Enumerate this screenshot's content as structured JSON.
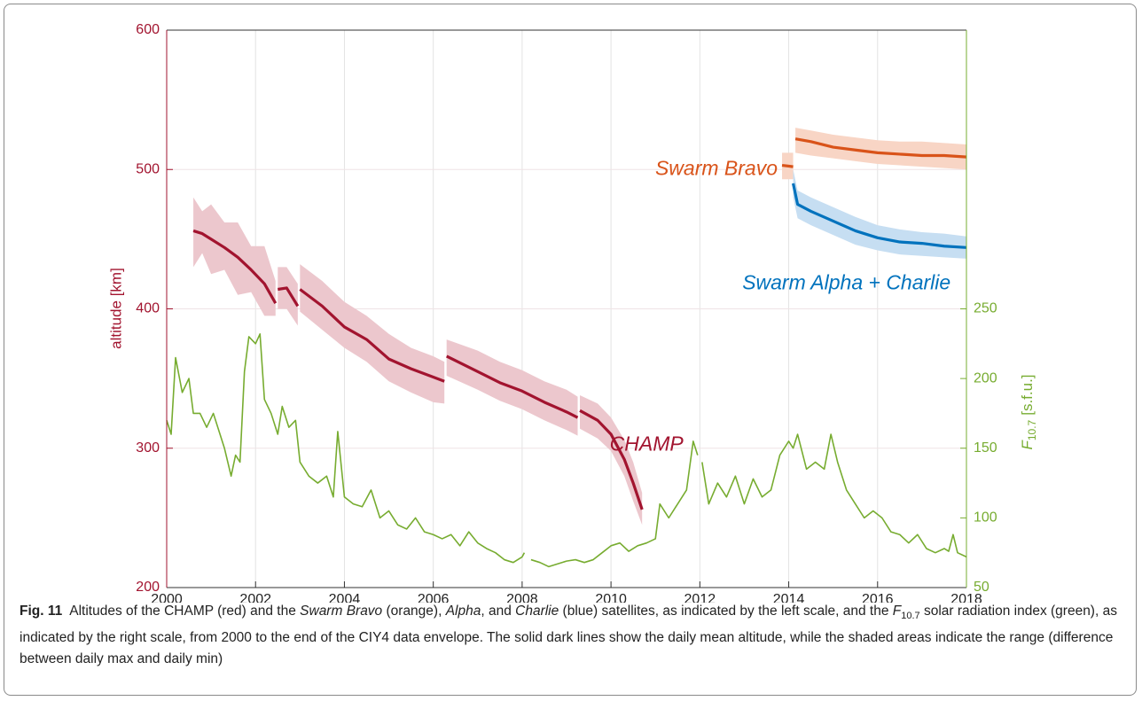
{
  "chart_data": {
    "type": "line",
    "ylabel": "altitude [km]",
    "y2label": {
      "symbol": "F",
      "subscript": "10.7",
      "unit": "[s.f.u.]"
    },
    "xlim": [
      2000,
      2018
    ],
    "xticks": [
      2000,
      2002,
      2004,
      2006,
      2008,
      2010,
      2012,
      2014,
      2016,
      2018
    ],
    "ylim": [
      200,
      600
    ],
    "yticks": [
      200,
      300,
      400,
      500,
      600
    ],
    "y2lim": [
      50,
      450
    ],
    "y2ticks": [
      50,
      100,
      150,
      200,
      250
    ],
    "grid": true,
    "series": [
      {
        "name": "CHAMP",
        "color": "#a2142f",
        "band_color": "#ecc7cd",
        "x": [
          2000.6,
          2000.8,
          2001.0,
          2001.3,
          2001.6,
          2001.9,
          2002.2,
          2002.45,
          2002.47,
          2002.5,
          2002.7,
          2002.95,
          2002.97,
          2003.0,
          2003.5,
          2004.0,
          2004.5,
          2005.0,
          2005.5,
          2006.0,
          2006.25,
          2006.27,
          2006.3,
          2007.0,
          2007.5,
          2008.0,
          2008.5,
          2009.0,
          2009.25,
          2009.27,
          2009.3,
          2009.7,
          2010.0,
          2010.3,
          2010.5,
          2010.7
        ],
        "values": [
          456,
          454,
          450,
          444,
          437,
          428,
          418,
          404,
          null,
          414,
          415,
          402,
          null,
          414,
          402,
          387,
          378,
          364,
          357,
          351,
          348,
          null,
          366,
          355,
          347,
          341,
          333,
          326,
          322,
          null,
          327,
          320,
          310,
          292,
          275,
          256
        ],
        "high": [
          480,
          470,
          475,
          462,
          462,
          445,
          445,
          420,
          null,
          430,
          430,
          418,
          null,
          432,
          420,
          405,
          395,
          382,
          372,
          366,
          362,
          null,
          378,
          370,
          362,
          356,
          348,
          342,
          337,
          null,
          338,
          332,
          322,
          306,
          290,
          268
        ],
        "low": [
          430,
          440,
          425,
          428,
          410,
          412,
          395,
          395,
          null,
          400,
          400,
          388,
          null,
          398,
          385,
          372,
          362,
          348,
          340,
          333,
          332,
          null,
          352,
          342,
          334,
          328,
          320,
          313,
          309,
          null,
          314,
          307,
          298,
          280,
          262,
          245
        ]
      },
      {
        "name": "Swarm Bravo",
        "color": "#d95319",
        "band_color": "#f8d5c5",
        "x": [
          2013.85,
          2014.1,
          2014.12,
          2014.15,
          2014.5,
          2015.0,
          2015.5,
          2016.0,
          2016.5,
          2017.0,
          2017.5,
          2018.0
        ],
        "values": [
          503,
          502,
          null,
          522,
          520,
          516,
          514,
          512,
          511,
          510,
          510,
          509
        ],
        "high": [
          512,
          512,
          null,
          530,
          528,
          525,
          523,
          521,
          520,
          520,
          519,
          518
        ],
        "low": [
          493,
          493,
          null,
          512,
          510,
          508,
          506,
          504,
          503,
          502,
          501,
          500
        ]
      },
      {
        "name": "Swarm Alpha + Charlie",
        "color": "#0072bd",
        "band_color": "#c6def2",
        "x": [
          2014.1,
          2014.2,
          2014.5,
          2015.0,
          2015.5,
          2016.0,
          2016.5,
          2017.0,
          2017.5,
          2018.0
        ],
        "values": [
          490,
          475,
          470,
          463,
          456,
          451,
          448,
          447,
          445,
          444
        ],
        "high": [
          500,
          485,
          480,
          473,
          466,
          460,
          457,
          455,
          454,
          452
        ],
        "low": [
          480,
          465,
          460,
          453,
          446,
          442,
          439,
          438,
          437,
          436
        ]
      },
      {
        "axis": "y2",
        "color": "#77ac30",
        "x": [
          2000.0,
          2000.1,
          2000.2,
          2000.35,
          2000.5,
          2000.6,
          2000.75,
          2000.9,
          2001.05,
          2001.2,
          2001.3,
          2001.45,
          2001.55,
          2001.65,
          2001.75,
          2001.85,
          2002.0,
          2002.1,
          2002.2,
          2002.35,
          2002.5,
          2002.6,
          2002.75,
          2002.9,
          2003.0,
          2003.2,
          2003.4,
          2003.6,
          2003.75,
          2003.85,
          2004.0,
          2004.2,
          2004.4,
          2004.6,
          2004.8,
          2005.0,
          2005.2,
          2005.4,
          2005.6,
          2005.8,
          2006.0,
          2006.2,
          2006.4,
          2006.6,
          2006.8,
          2007.0,
          2007.2,
          2007.4,
          2007.6,
          2007.8,
          2008.0,
          2008.05,
          2008.1,
          2008.2,
          2008.4,
          2008.6,
          2008.8,
          2009.0,
          2009.2,
          2009.4,
          2009.6,
          2009.8,
          2010.0,
          2010.2,
          2010.4,
          2010.6,
          2010.8,
          2011.0,
          2011.1,
          2011.3,
          2011.5,
          2011.7,
          2011.85,
          2011.95,
          2012.0,
          2012.05,
          2012.2,
          2012.4,
          2012.6,
          2012.8,
          2013.0,
          2013.2,
          2013.4,
          2013.6,
          2013.8,
          2014.0,
          2014.1,
          2014.2,
          2014.4,
          2014.6,
          2014.8,
          2014.95,
          2015.1,
          2015.3,
          2015.5,
          2015.7,
          2015.9,
          2016.1,
          2016.3,
          2016.5,
          2016.7,
          2016.9,
          2017.1,
          2017.3,
          2017.5,
          2017.6,
          2017.7,
          2017.8,
          2018.0
        ],
        "values": [
          170,
          160,
          215,
          190,
          200,
          175,
          175,
          165,
          175,
          160,
          150,
          130,
          145,
          140,
          205,
          230,
          225,
          232,
          185,
          175,
          160,
          180,
          165,
          170,
          140,
          130,
          125,
          130,
          115,
          162,
          115,
          110,
          108,
          120,
          100,
          105,
          95,
          92,
          100,
          90,
          88,
          85,
          88,
          80,
          90,
          82,
          78,
          75,
          70,
          68,
          72,
          75,
          null,
          70,
          68,
          65,
          67,
          69,
          70,
          68,
          70,
          75,
          80,
          82,
          76,
          80,
          82,
          85,
          110,
          100,
          110,
          120,
          155,
          145,
          null,
          140,
          110,
          125,
          115,
          130,
          110,
          128,
          115,
          120,
          145,
          155,
          150,
          160,
          135,
          140,
          135,
          160,
          140,
          120,
          110,
          100,
          105,
          100,
          90,
          88,
          82,
          88,
          78,
          75,
          78,
          76,
          88,
          75,
          72
        ]
      }
    ],
    "caption": {
      "label": "Fig. 11",
      "parts": [
        {
          "text": "Altitudes of the CHAMP (red) and the "
        },
        {
          "text": "Swarm Bravo",
          "italic": true
        },
        {
          "text": " (orange), "
        },
        {
          "text": "Alpha",
          "italic": true
        },
        {
          "text": ", and "
        },
        {
          "text": "Charlie",
          "italic": true
        },
        {
          "text": " (blue) satellites, as indicated by the left scale, and the "
        },
        {
          "text": "F",
          "italic": true
        },
        {
          "text": "10.7",
          "sub": true
        },
        {
          "text": " solar radiation index (green), as indicated by the right scale, from 2000 to the end of the CIY4 data envelope. The solid dark lines show the daily mean altitude, while the shaded areas indicate the range (difference between daily max and daily min)"
        }
      ]
    }
  }
}
